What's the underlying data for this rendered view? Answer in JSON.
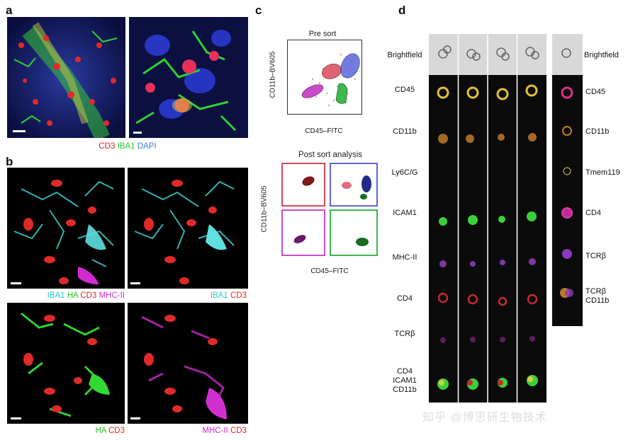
{
  "panels": {
    "a": {
      "letter": "a",
      "legend": [
        {
          "text": "CD3",
          "color": "#e0242a"
        },
        {
          "text": "IBA1",
          "color": "#26c826"
        },
        {
          "text": "DAPI",
          "color": "#3b83d6"
        }
      ]
    },
    "b": {
      "letter": "b",
      "legend_top_left": [
        {
          "text": "IBA1",
          "color": "#2ec9c9"
        },
        {
          "text": "HA",
          "color": "#26c826"
        },
        {
          "text": "CD3",
          "color": "#e0242a"
        },
        {
          "text": "MHC-II",
          "color": "#d02ad0"
        }
      ],
      "legend_top_right": [
        {
          "text": "IBA1",
          "color": "#2ec9c9"
        },
        {
          "text": "CD3",
          "color": "#e0242a"
        }
      ],
      "legend_bottom_left": [
        {
          "text": "HA",
          "color": "#26c826"
        },
        {
          "text": "CD3",
          "color": "#e0242a"
        }
      ],
      "legend_bottom_right": [
        {
          "text": "MHC-II",
          "color": "#d02ad0"
        },
        {
          "text": "CD3",
          "color": "#e0242a"
        }
      ]
    },
    "c": {
      "letter": "c",
      "pre_title": "Pre sort",
      "post_title": "Post sort analysis",
      "xlabel": "CD45–FITC",
      "ylabel": "CD11b–BV605",
      "gate_colors": [
        "#d9495b",
        "#5b66d9",
        "#3db84a",
        "#c94cc9"
      ]
    },
    "d": {
      "letter": "d",
      "left_rows": [
        "Brightfield",
        "CD45",
        "CD11b",
        "Ly6C/G",
        "ICAM1",
        "MHC-II",
        "CD4",
        "TCRβ",
        "CD4\nICAM1\nCD11b"
      ],
      "right_rows": [
        "Brightfield",
        "CD45",
        "CD11b",
        "Tmem119",
        "CD4",
        "TCRβ",
        "TCRβ\nCD11b"
      ]
    }
  },
  "watermark": "知乎 @博思研生物技术"
}
